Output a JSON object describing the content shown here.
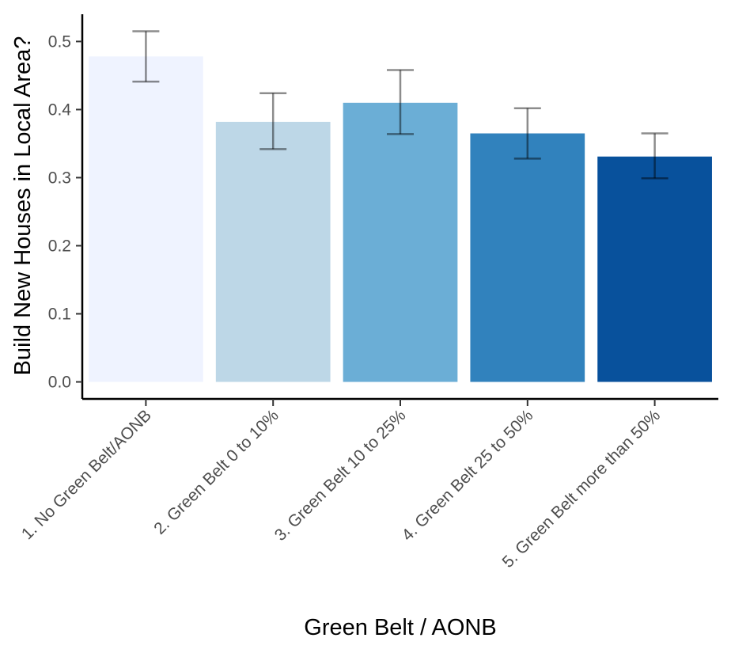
{
  "chart_data": {
    "type": "bar",
    "xlabel": "Green Belt / AONB",
    "ylabel": "Build New Houses in Local Area?",
    "categories": [
      "1. No Green Belt/AONB",
      "2. Green Belt 0 to 10%",
      "3. Green Belt 10 to 25%",
      "4. Green Belt 25 to 50%",
      "5. Green Belt more than 50%"
    ],
    "values": [
      0.478,
      0.382,
      0.41,
      0.365,
      0.331
    ],
    "error_low": [
      0.441,
      0.342,
      0.364,
      0.328,
      0.299
    ],
    "error_high": [
      0.515,
      0.424,
      0.458,
      0.402,
      0.365
    ],
    "bar_colors": [
      "#EFF3FF",
      "#BDD7E7",
      "#6BAED6",
      "#3182BD",
      "#08519C"
    ],
    "y_ticks": [
      "0.0",
      "0.1",
      "0.2",
      "0.3",
      "0.4",
      "0.5"
    ],
    "ylim": [
      -0.025,
      0.54
    ],
    "grid": false,
    "legend": "none"
  }
}
